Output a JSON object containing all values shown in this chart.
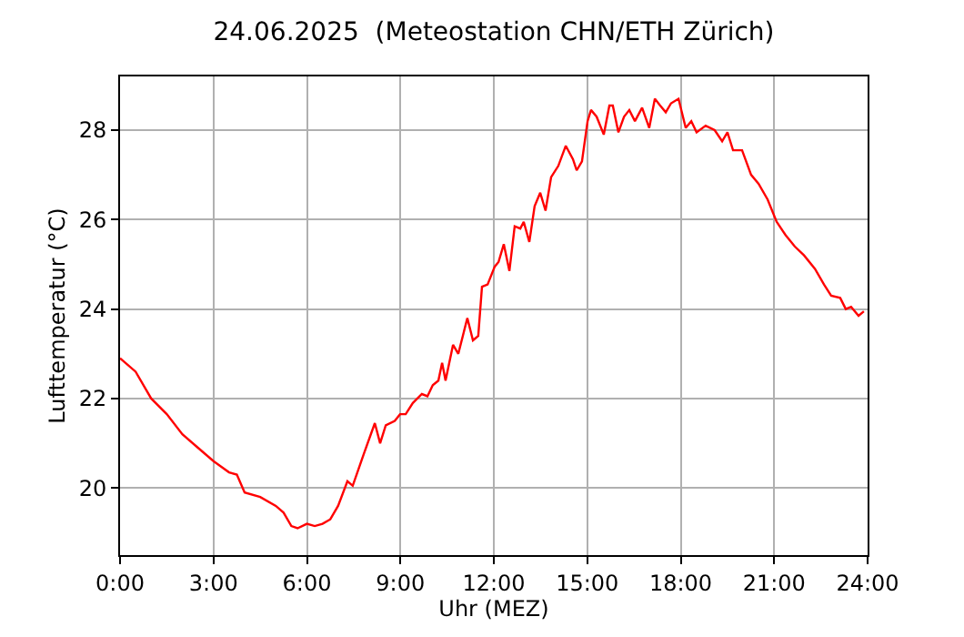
{
  "chart_data": {
    "type": "line",
    "title": "24.06.2025  (Meteostation CHN/ETH Zürich)",
    "xlabel": "Uhr (MEZ)",
    "ylabel": "Lufttemperatur (°C)",
    "x": [
      0,
      0.5,
      1,
      1.5,
      2,
      2.5,
      3,
      3.5,
      3.75,
      4,
      4.5,
      5,
      5.25,
      5.5,
      5.7,
      6,
      6.25,
      6.5,
      6.75,
      7,
      7.3,
      7.47,
      7.82,
      8.18,
      8.35,
      8.53,
      8.82,
      8.99,
      9.17,
      9.4,
      9.69,
      9.87,
      10.04,
      10.22,
      10.34,
      10.45,
      10.69,
      10.86,
      11.15,
      11.33,
      11.5,
      11.62,
      11.8,
      12.03,
      12.15,
      12.32,
      12.5,
      12.67,
      12.85,
      12.96,
      13.14,
      13.31,
      13.49,
      13.66,
      13.84,
      14.07,
      14.31,
      14.54,
      14.66,
      14.83,
      15.01,
      15.12,
      15.3,
      15.53,
      15.71,
      15.82,
      16.0,
      16.18,
      16.35,
      16.53,
      16.76,
      16.99,
      17.17,
      17.34,
      17.52,
      17.69,
      17.93,
      18.16,
      18.34,
      18.51,
      18.8,
      19.09,
      19.33,
      19.5,
      19.68,
      19.97,
      20.26,
      20.5,
      20.79,
      21.08,
      21.37,
      21.66,
      21.96,
      22.31,
      22.6,
      22.83,
      23.12,
      23.3,
      23.47,
      23.71,
      23.88
    ],
    "series": [
      {
        "color": "#ff0000",
        "values": [
          22.9,
          22.6,
          22.0,
          21.65,
          21.2,
          20.9,
          20.6,
          20.35,
          20.3,
          19.9,
          19.8,
          19.6,
          19.45,
          19.15,
          19.1,
          19.2,
          19.15,
          19.2,
          19.3,
          19.6,
          20.15,
          20.05,
          20.75,
          21.45,
          21.0,
          21.4,
          21.5,
          21.65,
          21.65,
          21.9,
          22.1,
          22.05,
          22.3,
          22.4,
          22.8,
          22.4,
          23.2,
          23.0,
          23.8,
          23.3,
          23.4,
          24.5,
          24.55,
          24.95,
          25.05,
          25.45,
          24.85,
          25.85,
          25.8,
          25.95,
          25.5,
          26.3,
          26.6,
          26.2,
          26.95,
          27.2,
          27.65,
          27.35,
          27.1,
          27.3,
          28.2,
          28.45,
          28.3,
          27.9,
          28.55,
          28.55,
          27.95,
          28.3,
          28.45,
          28.2,
          28.5,
          28.05,
          28.7,
          28.55,
          28.4,
          28.6,
          28.7,
          28.05,
          28.2,
          27.95,
          28.1,
          28.0,
          27.75,
          27.95,
          27.55,
          27.55,
          27.0,
          26.8,
          26.45,
          25.95,
          25.65,
          25.4,
          25.2,
          24.9,
          24.55,
          24.3,
          24.25,
          24.0,
          24.05,
          23.85,
          23.95
        ]
      }
    ],
    "xlim": [
      0,
      24
    ],
    "xticks": [
      {
        "value": 0,
        "label": "0:00"
      },
      {
        "value": 3,
        "label": "3:00"
      },
      {
        "value": 6,
        "label": "6:00"
      },
      {
        "value": 9,
        "label": "9:00"
      },
      {
        "value": 12,
        "label": "12:00"
      },
      {
        "value": 15,
        "label": "15:00"
      },
      {
        "value": 18,
        "label": "18:00"
      },
      {
        "value": 21,
        "label": "21:00"
      },
      {
        "value": 24,
        "label": "24:00"
      }
    ],
    "ylim": [
      18.5,
      29.2
    ],
    "yticks": [
      20,
      22,
      24,
      26,
      28
    ],
    "grid": true,
    "marker": "none",
    "line_style": "solid"
  }
}
